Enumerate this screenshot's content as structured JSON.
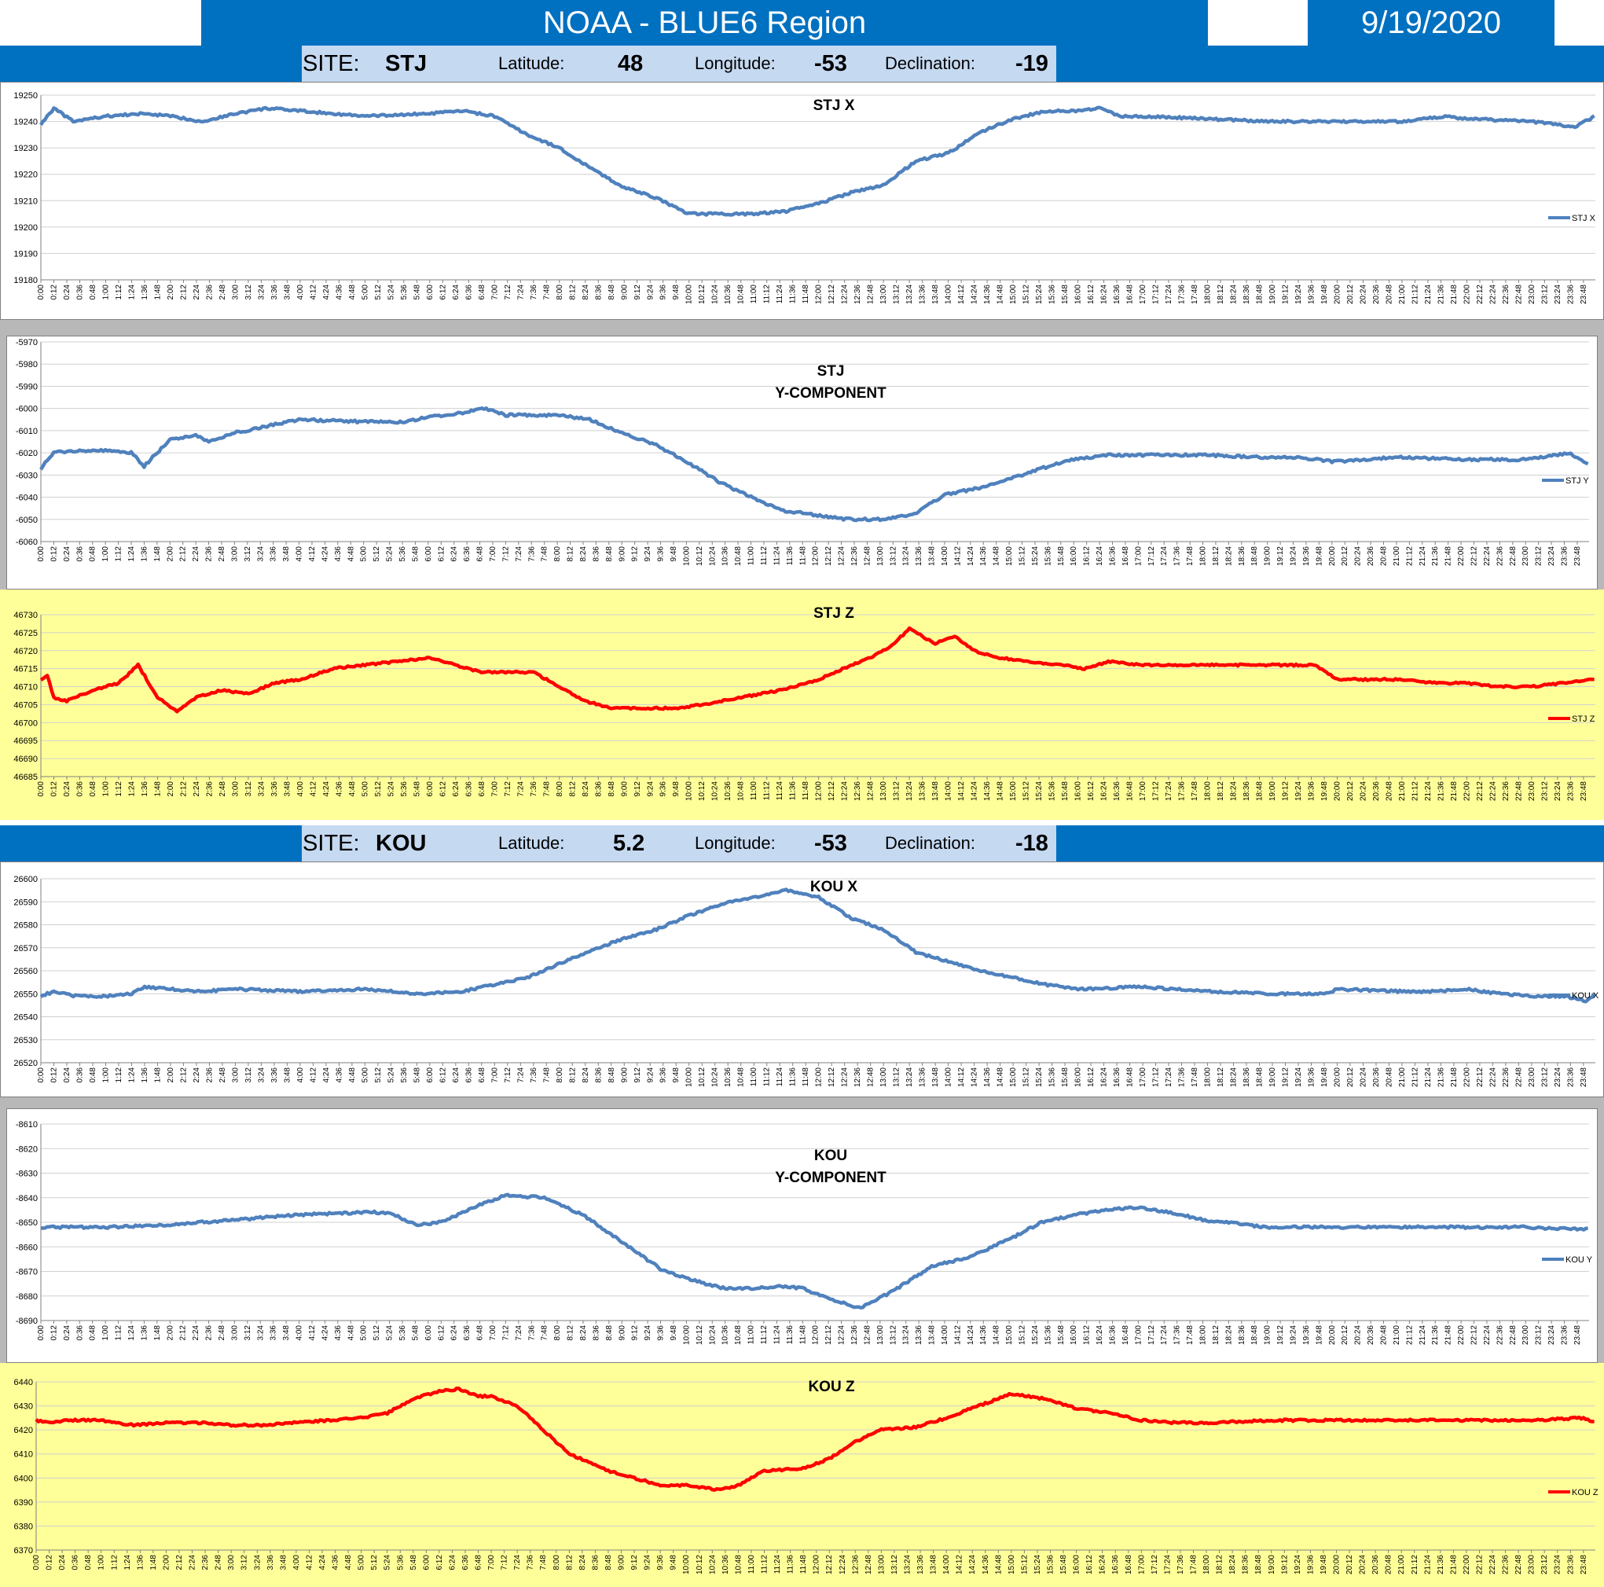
{
  "header": {
    "title": "NOAA - BLUE6 Region",
    "date": "9/19/2020"
  },
  "sites": [
    {
      "site_label": "SITE:",
      "site": "STJ",
      "lat_label": "Latitude:",
      "lat": "48",
      "lon_label": "Longitude:",
      "lon": "-53",
      "dec_label": "Declination:",
      "dec": "-19"
    },
    {
      "site_label": "SITE:",
      "site": "KOU",
      "lat_label": "Latitude:",
      "lat": "5.2",
      "lon_label": "Longitude:",
      "lon": "-53",
      "dec_label": "Declination:",
      "dec": "-18"
    }
  ],
  "colors": {
    "blue_series": "#4f81bd",
    "red_series": "#ff0000",
    "header": "#0070c0",
    "site_band": "#c5d9f1",
    "yellow_bg": "#ffff99",
    "gray_bg": "#b8b8b8"
  },
  "chart_data": [
    {
      "id": "stj-x",
      "type": "line",
      "title": [
        "STJ X"
      ],
      "legend": "STJ X",
      "legend_position": "right",
      "color": "#4f81bd",
      "grid": true,
      "ylim": [
        19180,
        19250
      ],
      "yticks": [
        19250,
        19240,
        19230,
        19220,
        19210,
        19200,
        19190,
        19180
      ],
      "x_start": "0:00",
      "x_end": "23:59",
      "tick_interval_min": 12,
      "series": [
        {
          "name": "STJ X",
          "x": [
            "0:00",
            "0:12",
            "0:30",
            "1:00",
            "1:36",
            "2:00",
            "2:30",
            "3:00",
            "3:30",
            "4:00",
            "5:00",
            "6:00",
            "6:30",
            "7:00",
            "7:30",
            "8:00",
            "8:30",
            "9:00",
            "9:30",
            "10:00",
            "10:30",
            "11:00",
            "11:30",
            "12:00",
            "12:30",
            "13:00",
            "13:30",
            "14:00",
            "14:30",
            "15:00",
            "15:30",
            "16:00",
            "16:20",
            "16:40",
            "17:00",
            "18:00",
            "19:00",
            "20:00",
            "21:00",
            "21:40",
            "22:00",
            "23:00",
            "23:40",
            "23:59"
          ],
          "y": [
            19239,
            19245,
            19240,
            19242,
            19243,
            19242,
            19240,
            19243,
            19245,
            19244,
            19242,
            19243,
            19244,
            19242,
            19235,
            19230,
            19222,
            19215,
            19211,
            19205,
            19205,
            19205,
            19206,
            19209,
            19213,
            19216,
            19225,
            19228,
            19236,
            19241,
            19244,
            19244,
            19245,
            19242,
            19242,
            19241,
            19240,
            19240,
            19240,
            19242,
            19241,
            19240,
            19238,
            19242
          ]
        }
      ]
    },
    {
      "id": "stj-y",
      "type": "line",
      "title": [
        "STJ",
        "Y-COMPONENT"
      ],
      "legend": "STJ Y",
      "legend_position": "right",
      "color": "#4f81bd",
      "grid": true,
      "ylim": [
        -6060,
        -5970
      ],
      "yticks": [
        -5970,
        -5980,
        -5990,
        -6000,
        -6010,
        -6020,
        -6030,
        -6040,
        -6050,
        -6060
      ],
      "x_start": "0:00",
      "x_end": "23:59",
      "tick_interval_min": 12,
      "series": [
        {
          "name": "STJ Y",
          "x": [
            "0:00",
            "0:12",
            "0:30",
            "1:00",
            "1:24",
            "1:36",
            "2:00",
            "2:24",
            "2:36",
            "3:00",
            "3:30",
            "4:00",
            "5:00",
            "5:36",
            "6:00",
            "6:30",
            "6:54",
            "7:12",
            "8:00",
            "8:30",
            "9:00",
            "9:30",
            "10:00",
            "10:30",
            "11:00",
            "11:30",
            "12:00",
            "12:30",
            "13:00",
            "13:30",
            "14:00",
            "14:30",
            "15:00",
            "15:30",
            "16:00",
            "16:30",
            "17:00",
            "18:00",
            "19:00",
            "19:30",
            "20:00",
            "21:00",
            "22:00",
            "23:00",
            "23:40",
            "23:59"
          ],
          "y": [
            -6027,
            -6020,
            -6019,
            -6019,
            -6020,
            -6026,
            -6014,
            -6012,
            -6015,
            -6011,
            -6008,
            -6005,
            -6006,
            -6006,
            -6004,
            -6002,
            -6000,
            -6003,
            -6003,
            -6005,
            -6011,
            -6016,
            -6024,
            -6033,
            -6040,
            -6046,
            -6048,
            -6050,
            -6050,
            -6048,
            -6039,
            -6036,
            -6032,
            -6027,
            -6023,
            -6021,
            -6021,
            -6021,
            -6022,
            -6022,
            -6024,
            -6022,
            -6023,
            -6023,
            -6020,
            -6025
          ]
        }
      ]
    },
    {
      "id": "stj-z",
      "type": "line",
      "title": [
        "STJ Z"
      ],
      "legend": "STJ Z",
      "legend_position": "right",
      "color": "#ff0000",
      "grid": true,
      "ylim": [
        46685,
        46730
      ],
      "yticks": [
        46730,
        46725,
        46720,
        46715,
        46710,
        46705,
        46700,
        46695,
        46690,
        46685
      ],
      "x_start": "0:00",
      "x_end": "23:59",
      "tick_interval_min": 12,
      "series": [
        {
          "name": "STJ Z",
          "x": [
            "0:00",
            "0:06",
            "0:12",
            "0:24",
            "0:48",
            "1:12",
            "1:30",
            "1:48",
            "2:06",
            "2:24",
            "2:48",
            "3:12",
            "3:36",
            "4:00",
            "4:30",
            "5:00",
            "5:30",
            "6:00",
            "6:24",
            "6:48",
            "7:12",
            "7:36",
            "8:00",
            "8:24",
            "8:48",
            "9:12",
            "9:48",
            "10:12",
            "10:48",
            "11:24",
            "12:00",
            "12:30",
            "12:48",
            "13:06",
            "13:24",
            "13:48",
            "14:06",
            "14:24",
            "14:48",
            "15:12",
            "15:48",
            "16:06",
            "16:30",
            "17:00",
            "17:30",
            "18:00",
            "19:00",
            "19:40",
            "20:00",
            "20:30",
            "21:00",
            "21:30",
            "22:00",
            "22:30",
            "23:00",
            "23:30",
            "23:59"
          ],
          "y": [
            46712,
            46713,
            46707,
            46706,
            46709,
            46711,
            46716,
            46707,
            46703,
            46707,
            46709,
            46708,
            46711,
            46712,
            46715,
            46716,
            46717,
            46718,
            46716,
            46714,
            46714,
            46714,
            46710,
            46706,
            46704,
            46704,
            46704,
            46705,
            46707,
            46709,
            46712,
            46716,
            46718,
            46721,
            46726,
            46722,
            46724,
            46720,
            46718,
            46717,
            46716,
            46715,
            46717,
            46716,
            46716,
            46716,
            46716,
            46716,
            46712,
            46712,
            46712,
            46711,
            46711,
            46710,
            46710,
            46711,
            46712
          ]
        }
      ]
    },
    {
      "id": "kou-x",
      "type": "line",
      "title": [
        "KOU X"
      ],
      "legend": "KOU X",
      "legend_position": "right",
      "color": "#4f81bd",
      "grid": true,
      "ylim": [
        26520,
        26600
      ],
      "yticks": [
        26600,
        26590,
        26580,
        26570,
        26560,
        26550,
        26540,
        26530,
        26520
      ],
      "x_start": "0:00",
      "x_end": "23:59",
      "tick_interval_min": 12,
      "series": [
        {
          "name": "KOU X",
          "x": [
            "0:00",
            "0:12",
            "0:30",
            "1:00",
            "1:24",
            "1:36",
            "2:00",
            "2:30",
            "3:00",
            "4:00",
            "5:00",
            "5:48",
            "6:30",
            "7:00",
            "7:30",
            "8:00",
            "8:30",
            "9:00",
            "9:30",
            "10:00",
            "10:30",
            "11:00",
            "11:30",
            "12:00",
            "12:30",
            "13:00",
            "13:30",
            "14:00",
            "14:30",
            "15:00",
            "15:30",
            "16:00",
            "17:00",
            "17:30",
            "18:00",
            "19:00",
            "19:50",
            "20:00",
            "21:00",
            "21:30",
            "22:00",
            "22:30",
            "23:00",
            "23:30",
            "23:50",
            "23:59"
          ],
          "y": [
            26549,
            26551,
            26549,
            26549,
            26550,
            26553,
            26552,
            26551,
            26552,
            26551,
            26552,
            26550,
            26551,
            26554,
            26557,
            26563,
            26569,
            26574,
            26578,
            26584,
            26589,
            26592,
            26595,
            26592,
            26583,
            26578,
            26568,
            26564,
            26560,
            26557,
            26554,
            26552,
            26553,
            26552,
            26551,
            26550,
            26550,
            26552,
            26551,
            26551,
            26552,
            26550,
            26549,
            26549,
            26547,
            26550
          ]
        }
      ]
    },
    {
      "id": "kou-y",
      "type": "line",
      "title": [
        "KOU",
        "Y-COMPONENT"
      ],
      "legend": "KOU Y",
      "legend_position": "right",
      "color": "#4f81bd",
      "grid": true,
      "ylim": [
        -8690,
        -8610
      ],
      "yticks": [
        -8610,
        -8620,
        -8630,
        -8640,
        -8650,
        -8660,
        -8670,
        -8680,
        -8690
      ],
      "x_start": "0:00",
      "x_end": "23:59",
      "tick_interval_min": 12,
      "series": [
        {
          "name": "KOU Y",
          "x": [
            "0:00",
            "1:00",
            "2:00",
            "3:00",
            "4:00",
            "5:00",
            "5:24",
            "5:48",
            "6:12",
            "6:48",
            "7:12",
            "7:48",
            "8:24",
            "9:00",
            "9:36",
            "10:00",
            "10:36",
            "11:00",
            "11:30",
            "11:48",
            "12:12",
            "12:42",
            "13:12",
            "13:48",
            "14:24",
            "15:00",
            "15:30",
            "16:00",
            "16:30",
            "17:00",
            "17:30",
            "18:00",
            "19:00",
            "20:00",
            "21:00",
            "22:00",
            "23:00",
            "23:59"
          ],
          "y": [
            -8652,
            -8652,
            -8651,
            -8649,
            -8647,
            -8646,
            -8646,
            -8651,
            -8650,
            -8643,
            -8639,
            -8640,
            -8647,
            -8658,
            -8669,
            -8673,
            -8677,
            -8677,
            -8676,
            -8677,
            -8681,
            -8685,
            -8678,
            -8668,
            -8664,
            -8657,
            -8650,
            -8647,
            -8645,
            -8644,
            -8646,
            -8649,
            -8652,
            -8652,
            -8652,
            -8652,
            -8652,
            -8653
          ]
        }
      ]
    },
    {
      "id": "kou-z",
      "type": "line",
      "title": [
        "KOU Z"
      ],
      "legend": "KOU Z",
      "legend_position": "right",
      "color": "#ff0000",
      "grid": true,
      "ylim": [
        6370,
        6440
      ],
      "yticks": [
        6440,
        6430,
        6420,
        6410,
        6400,
        6390,
        6380,
        6370
      ],
      "x_start": "0:00",
      "x_end": "23:59",
      "tick_interval_min": 12,
      "series": [
        {
          "name": "KOU Z",
          "x": [
            "0:00",
            "0:12",
            "0:30",
            "1:00",
            "1:30",
            "2:00",
            "2:30",
            "3:00",
            "3:30",
            "4:00",
            "4:30",
            "5:00",
            "5:24",
            "5:48",
            "6:12",
            "6:30",
            "6:48",
            "7:00",
            "7:24",
            "7:48",
            "8:12",
            "8:48",
            "9:12",
            "9:36",
            "10:00",
            "10:30",
            "10:48",
            "11:12",
            "11:48",
            "12:12",
            "12:36",
            "13:00",
            "13:30",
            "14:00",
            "14:24",
            "14:48",
            "15:00",
            "15:30",
            "16:00",
            "16:30",
            "17:00",
            "17:30",
            "18:00",
            "19:00",
            "20:00",
            "21:00",
            "21:30",
            "22:00",
            "22:30",
            "23:00",
            "23:48",
            "23:59"
          ],
          "y": [
            6424,
            6423,
            6424,
            6424,
            6422,
            6423,
            6423,
            6422,
            6422,
            6423,
            6424,
            6425,
            6427,
            6433,
            6436,
            6437,
            6434,
            6434,
            6430,
            6420,
            6410,
            6403,
            6400,
            6397,
            6397,
            6395,
            6397,
            6403,
            6404,
            6408,
            6415,
            6420,
            6421,
            6425,
            6429,
            6433,
            6435,
            6433,
            6429,
            6427,
            6424,
            6423,
            6423,
            6424,
            6424,
            6424,
            6424,
            6424,
            6424,
            6424,
            6425,
            6423
          ]
        }
      ]
    }
  ]
}
